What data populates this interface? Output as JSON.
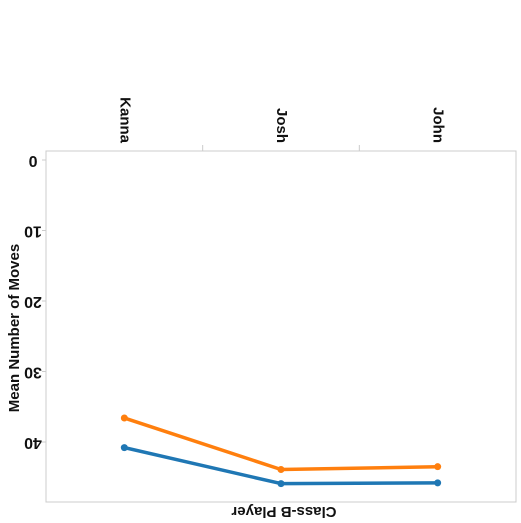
{
  "chart_data": {
    "type": "line",
    "orientation": "mirrored",
    "categories": [
      "John",
      "Josh",
      "Kanna"
    ],
    "xlabel": "Class-B Player",
    "ylabel": "Mean Number of Moves",
    "yticks": [
      0,
      10,
      20,
      30,
      40
    ],
    "ytick_labels": [
      "0",
      "10",
      "20",
      "30",
      "40"
    ],
    "ylim": [
      0,
      49
    ],
    "grid": false,
    "series": [
      {
        "color": "#1f77b4",
        "values": [
          45.8,
          45.9,
          40.8
        ]
      },
      {
        "color": "#ff7f0e",
        "values": [
          43.5,
          43.9,
          36.6
        ]
      }
    ]
  }
}
